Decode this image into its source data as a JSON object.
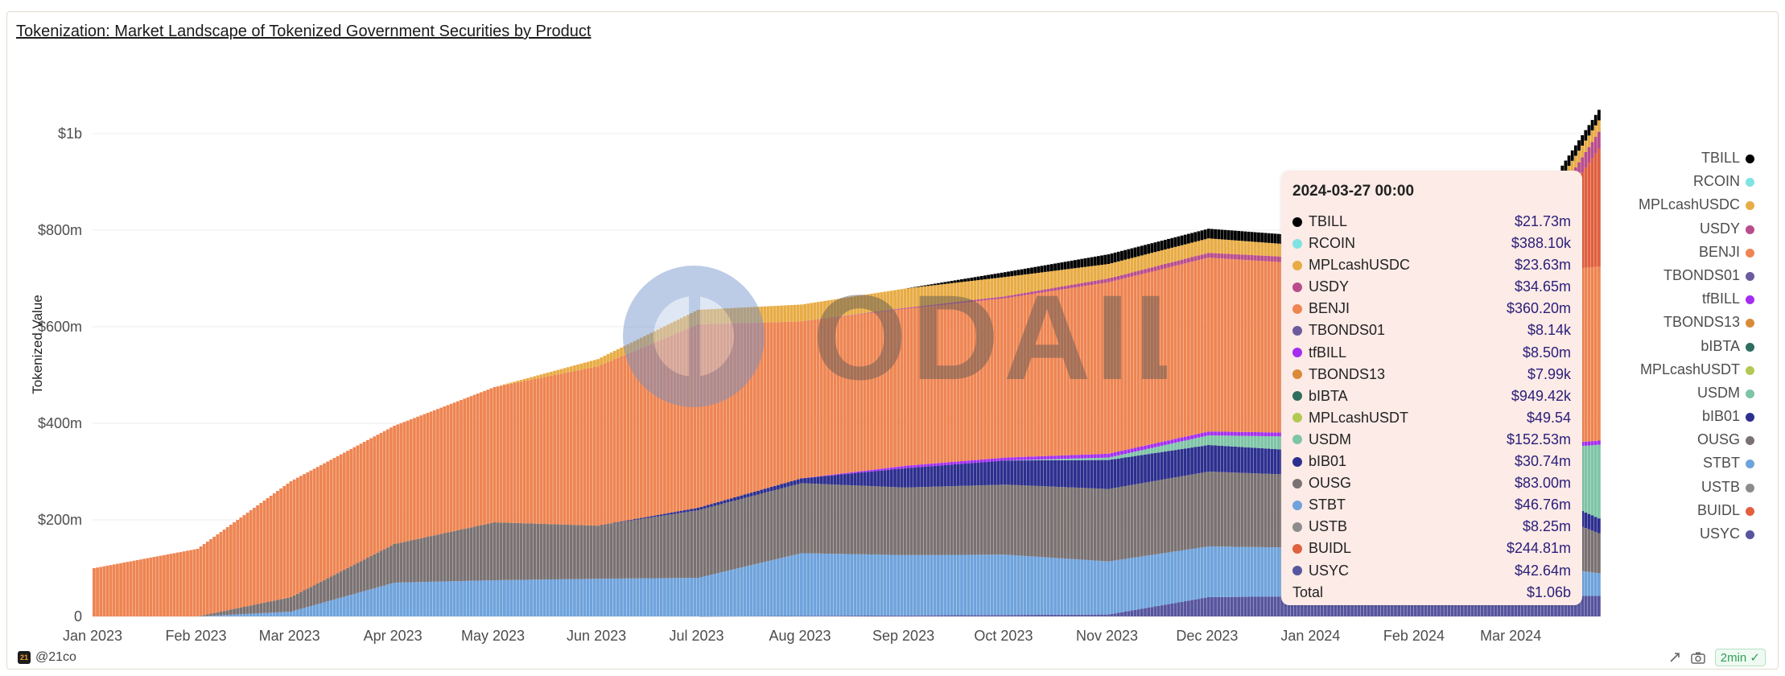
{
  "header": {
    "title": "Tokenization: Market Landscape of Tokenized Government Securities by Product"
  },
  "footer": {
    "author": "@21co",
    "author_logo": "21",
    "refresh_badge": "2min"
  },
  "watermark": {
    "text": "ODAILY"
  },
  "tooltip": {
    "date": "2024-03-27 00:00",
    "rows": [
      {
        "name": "TBILL",
        "value": "$21.73m",
        "color": "#000000"
      },
      {
        "name": "RCOIN",
        "value": "$388.10k",
        "color": "#7fe3e3"
      },
      {
        "name": "MPLcashUSDC",
        "value": "$23.63m",
        "color": "#e8ac45"
      },
      {
        "name": "USDY",
        "value": "$34.65m",
        "color": "#b84d8c"
      },
      {
        "name": "BENJI",
        "value": "$360.20m",
        "color": "#ee8552"
      },
      {
        "name": "TBONDS01",
        "value": "$8.14k",
        "color": "#6b5b9e"
      },
      {
        "name": "tfBILL",
        "value": "$8.50m",
        "color": "#a32ef0"
      },
      {
        "name": "TBONDS13",
        "value": "$7.99k",
        "color": "#d98a38"
      },
      {
        "name": "bIBTA",
        "value": "$949.42k",
        "color": "#2e6e5e"
      },
      {
        "name": "MPLcashUSDT",
        "value": "$49.54",
        "color": "#b3c954"
      },
      {
        "name": "USDM",
        "value": "$152.53m",
        "color": "#7ec4a6"
      },
      {
        "name": "bIB01",
        "value": "$30.74m",
        "color": "#2d2f8f"
      },
      {
        "name": "OUSG",
        "value": "$83.00m",
        "color": "#7a7272"
      },
      {
        "name": "STBT",
        "value": "$46.76m",
        "color": "#6fa3dc"
      },
      {
        "name": "USTB",
        "value": "$8.25m",
        "color": "#8c8c8c"
      },
      {
        "name": "BUIDL",
        "value": "$244.81m",
        "color": "#e0603f"
      },
      {
        "name": "USYC",
        "value": "$42.64m",
        "color": "#57559e"
      }
    ],
    "total_label": "Total",
    "total_value": "$1.06b"
  },
  "chart_data": {
    "type": "bar",
    "stacked": true,
    "ylabel": "Tokenized Value",
    "xlabel": "",
    "y_ticks": [
      {
        "value": 0,
        "label": "0"
      },
      {
        "value": 200000000,
        "label": "$200m"
      },
      {
        "value": 400000000,
        "label": "$400m"
      },
      {
        "value": 600000000,
        "label": "$600m"
      },
      {
        "value": 800000000,
        "label": "$800m"
      },
      {
        "value": 1000000000,
        "label": "$1b"
      }
    ],
    "ylim": [
      0,
      1000000000
    ],
    "x_ticks": [
      {
        "date": "2023-01-01",
        "label": "Jan 2023"
      },
      {
        "date": "2023-02-01",
        "label": "Feb 2023"
      },
      {
        "date": "2023-03-01",
        "label": "Mar 2023"
      },
      {
        "date": "2023-04-01",
        "label": "Apr 2023"
      },
      {
        "date": "2023-05-01",
        "label": "May 2023"
      },
      {
        "date": "2023-06-01",
        "label": "Jun 2023"
      },
      {
        "date": "2023-07-01",
        "label": "Jul 2023"
      },
      {
        "date": "2023-08-01",
        "label": "Aug 2023"
      },
      {
        "date": "2023-09-01",
        "label": "Sep 2023"
      },
      {
        "date": "2023-10-01",
        "label": "Oct 2023"
      },
      {
        "date": "2023-11-01",
        "label": "Nov 2023"
      },
      {
        "date": "2023-12-01",
        "label": "Dec 2023"
      },
      {
        "date": "2024-01-01",
        "label": "Jan 2024"
      },
      {
        "date": "2024-02-01",
        "label": "Feb 2024"
      },
      {
        "date": "2024-03-01",
        "label": "Mar 2024"
      }
    ],
    "legend_position": "right",
    "legend": [
      {
        "name": "TBILL",
        "color": "#000000"
      },
      {
        "name": "RCOIN",
        "color": "#7fe3e3"
      },
      {
        "name": "MPLcashUSDC",
        "color": "#e8ac45"
      },
      {
        "name": "USDY",
        "color": "#b84d8c"
      },
      {
        "name": "BENJI",
        "color": "#ee8552"
      },
      {
        "name": "TBONDS01",
        "color": "#6b5b9e"
      },
      {
        "name": "tfBILL",
        "color": "#a32ef0"
      },
      {
        "name": "TBONDS13",
        "color": "#d98a38"
      },
      {
        "name": "bIBTA",
        "color": "#2e6e5e"
      },
      {
        "name": "MPLcashUSDT",
        "color": "#b3c954"
      },
      {
        "name": "USDM",
        "color": "#7ec4a6"
      },
      {
        "name": "bIB01",
        "color": "#2d2f8f"
      },
      {
        "name": "OUSG",
        "color": "#7a7272"
      },
      {
        "name": "STBT",
        "color": "#6fa3dc"
      },
      {
        "name": "USTB",
        "color": "#8c8c8c"
      },
      {
        "name": "BUIDL",
        "color": "#e0603f"
      },
      {
        "name": "USYC",
        "color": "#57559e"
      }
    ],
    "x": [
      "2023-01-01",
      "2023-02-01",
      "2023-03-01",
      "2023-04-01",
      "2023-05-01",
      "2023-06-01",
      "2023-07-01",
      "2023-08-01",
      "2023-09-01",
      "2023-10-01",
      "2023-11-01",
      "2023-12-01",
      "2024-01-01",
      "2024-02-01",
      "2024-03-01",
      "2024-03-27"
    ],
    "series": [
      {
        "name": "USYC",
        "values": [
          0,
          0,
          0,
          0,
          0,
          0,
          0,
          1,
          2,
          3,
          4,
          40,
          42,
          42,
          42,
          42.64
        ]
      },
      {
        "name": "STBT",
        "values": [
          0,
          0,
          10,
          70,
          75,
          78,
          80,
          130,
          125,
          125,
          110,
          105,
          100,
          95,
          70,
          46.76
        ]
      },
      {
        "name": "OUSG",
        "values": [
          0,
          0,
          30,
          80,
          120,
          110,
          140,
          145,
          140,
          145,
          150,
          155,
          150,
          145,
          130,
          83.0
        ]
      },
      {
        "name": "bIB01",
        "values": [
          0,
          0,
          0,
          0,
          0,
          0,
          5,
          10,
          40,
          50,
          60,
          55,
          50,
          45,
          40,
          30.74
        ]
      },
      {
        "name": "USDM",
        "values": [
          0,
          0,
          0,
          0,
          0,
          0,
          0,
          0,
          0,
          0,
          5,
          20,
          30,
          40,
          60,
          152.53
        ]
      },
      {
        "name": "tfBILL",
        "values": [
          0,
          0,
          0,
          0,
          0,
          0,
          0,
          0,
          5,
          6,
          8,
          8,
          8,
          8,
          8,
          8.5
        ]
      },
      {
        "name": "BENJI",
        "values": [
          100,
          140,
          240,
          245,
          280,
          330,
          380,
          325,
          325,
          330,
          355,
          360,
          350,
          360,
          360,
          360.2
        ]
      },
      {
        "name": "BUIDL",
        "values": [
          0,
          0,
          0,
          0,
          0,
          0,
          0,
          0,
          0,
          0,
          0,
          0,
          0,
          0,
          0,
          244.81
        ]
      },
      {
        "name": "USDY",
        "values": [
          0,
          0,
          0,
          0,
          0,
          0,
          0,
          0,
          2,
          4,
          8,
          10,
          12,
          15,
          20,
          34.65
        ]
      },
      {
        "name": "MPLcashUSDC",
        "values": [
          0,
          0,
          0,
          0,
          0,
          15,
          30,
          35,
          40,
          40,
          30,
          30,
          25,
          25,
          25,
          23.63
        ]
      },
      {
        "name": "TBILL",
        "values": [
          0,
          0,
          0,
          0,
          0,
          0,
          0,
          0,
          0,
          10,
          20,
          20,
          20,
          20,
          21,
          21.73
        ]
      }
    ],
    "series_units": "$m"
  }
}
